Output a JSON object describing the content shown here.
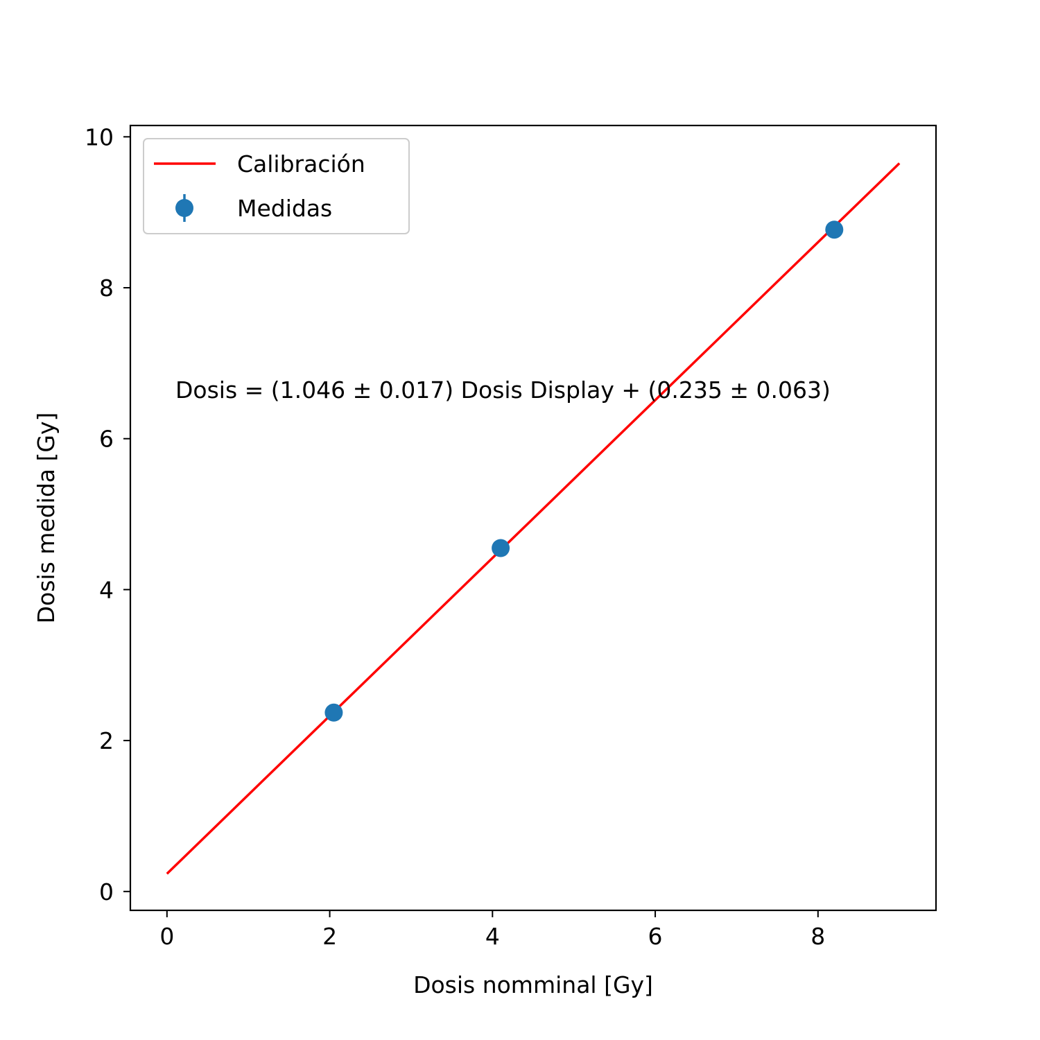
{
  "chart_data": {
    "type": "scatter",
    "xlabel": "Dosis nomminal [Gy]",
    "ylabel": "Dosis medida [Gy]",
    "xlim": [
      -0.45,
      9.45
    ],
    "ylim": [
      -0.25,
      10.15
    ],
    "xticks": [
      0,
      2,
      4,
      6,
      8
    ],
    "yticks": [
      0,
      2,
      4,
      6,
      8,
      10
    ],
    "xtick_labels": [
      "0",
      "2",
      "4",
      "6",
      "8"
    ],
    "ytick_labels": [
      "0",
      "2",
      "4",
      "6",
      "8",
      "10"
    ],
    "grid": false,
    "legend_position": "top-left",
    "annotation": "Dosis = (1.046 ± 0.017) Dosis Display + (0.235 ± 0.063)",
    "series": [
      {
        "name": "Calibración",
        "kind": "line",
        "color": "#ff0000",
        "x": [
          0,
          9
        ],
        "y": [
          0.235,
          9.649
        ]
      },
      {
        "name": "Medidas",
        "kind": "errorbar",
        "color": "#1f77b4",
        "x": [
          2.05,
          4.1,
          8.2
        ],
        "y": [
          2.37,
          4.55,
          8.77
        ]
      }
    ]
  }
}
